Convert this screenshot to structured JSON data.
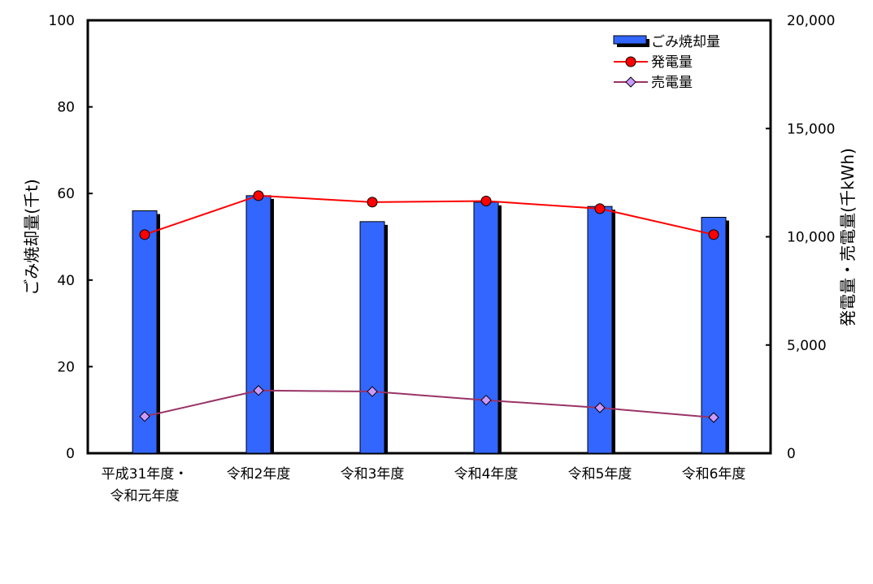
{
  "chart_data": {
    "type": "bar",
    "categories": [
      [
        "平成31年度・",
        "令和元年度"
      ],
      [
        "令和2年度"
      ],
      [
        "令和3年度"
      ],
      [
        "令和4年度"
      ],
      [
        "令和5年度"
      ],
      [
        "令和6年度"
      ]
    ],
    "y_left": {
      "label": "ごみ焼却量(千t)",
      "min": 0,
      "max": 100,
      "ticks": [
        "0",
        "20",
        "40",
        "60",
        "80",
        "100"
      ],
      "tick_values": [
        0,
        20,
        40,
        60,
        80,
        100
      ]
    },
    "y_right": {
      "label": "発電量・売電量(千kWh)",
      "min": 0,
      "max": 20000,
      "ticks": [
        "0",
        "5,000",
        "10,000",
        "15,000",
        "20,000"
      ],
      "tick_values": [
        0,
        5000,
        10000,
        15000,
        20000
      ]
    },
    "series": [
      {
        "name": "ごみ焼却量",
        "type": "bar",
        "axis": "left",
        "values": [
          56,
          59.5,
          53.5,
          58,
          57,
          54.5
        ],
        "color": "#3366ff"
      },
      {
        "name": "発電量",
        "type": "line",
        "axis": "right",
        "values": [
          10100,
          11900,
          11600,
          11650,
          11300,
          10100
        ],
        "color": "#ff0000",
        "marker": "circle"
      },
      {
        "name": "売電量",
        "type": "line",
        "axis": "right",
        "values": [
          1700,
          2900,
          2850,
          2450,
          2100,
          1650
        ],
        "color": "#993366",
        "marker_fill": "#cc99ff",
        "marker": "diamond"
      }
    ],
    "legend_position": "top-right",
    "grid": false
  }
}
